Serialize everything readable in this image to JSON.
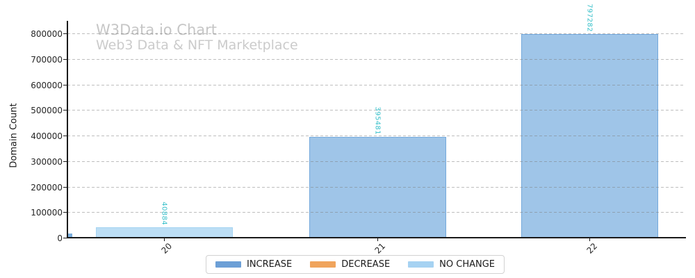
{
  "chart_data": {
    "type": "bar",
    "title": "W3Data.io Chart",
    "subtitle": "Web3 Data & NFT Marketplace",
    "title_color": "#c6c6c6",
    "subtitle_color": "#cbcbcb",
    "xlabel": "",
    "ylabel": "Domain Count",
    "categories": [
      "20",
      "21",
      "22"
    ],
    "values": [
      40884,
      395481,
      797282
    ],
    "value_labels": [
      "40884",
      "395481",
      "797282"
    ],
    "value_label_color": "#38c0ca",
    "ylim": [
      0,
      800000
    ],
    "yticks": [
      0,
      100000,
      200000,
      300000,
      400000,
      500000,
      600000,
      700000,
      800000
    ],
    "grid": {
      "axis": "y",
      "style": "dashed",
      "color": "#c8c8c8"
    },
    "bars": [
      {
        "category": "20",
        "value": 40884,
        "status": "NO CHANGE",
        "face": "#bcdef5",
        "edge": "#a6d4f2"
      },
      {
        "category": "21",
        "value": 395481,
        "status": "INCREASE",
        "face": "#9fc5e8",
        "edge": "#74a9dc"
      },
      {
        "category": "22",
        "value": 797282,
        "status": "INCREASE",
        "face": "#9fc5e8",
        "edge": "#74a9dc"
      }
    ],
    "legend": {
      "position": "bottom-center",
      "entries": [
        {
          "label": "INCREASE",
          "color": "#6c9fd6"
        },
        {
          "label": "DECREASE",
          "color": "#f0a45c"
        },
        {
          "label": "NO CHANGE",
          "color": "#a6d2f2"
        }
      ]
    },
    "corner_artifact_color": "#7aaede"
  }
}
